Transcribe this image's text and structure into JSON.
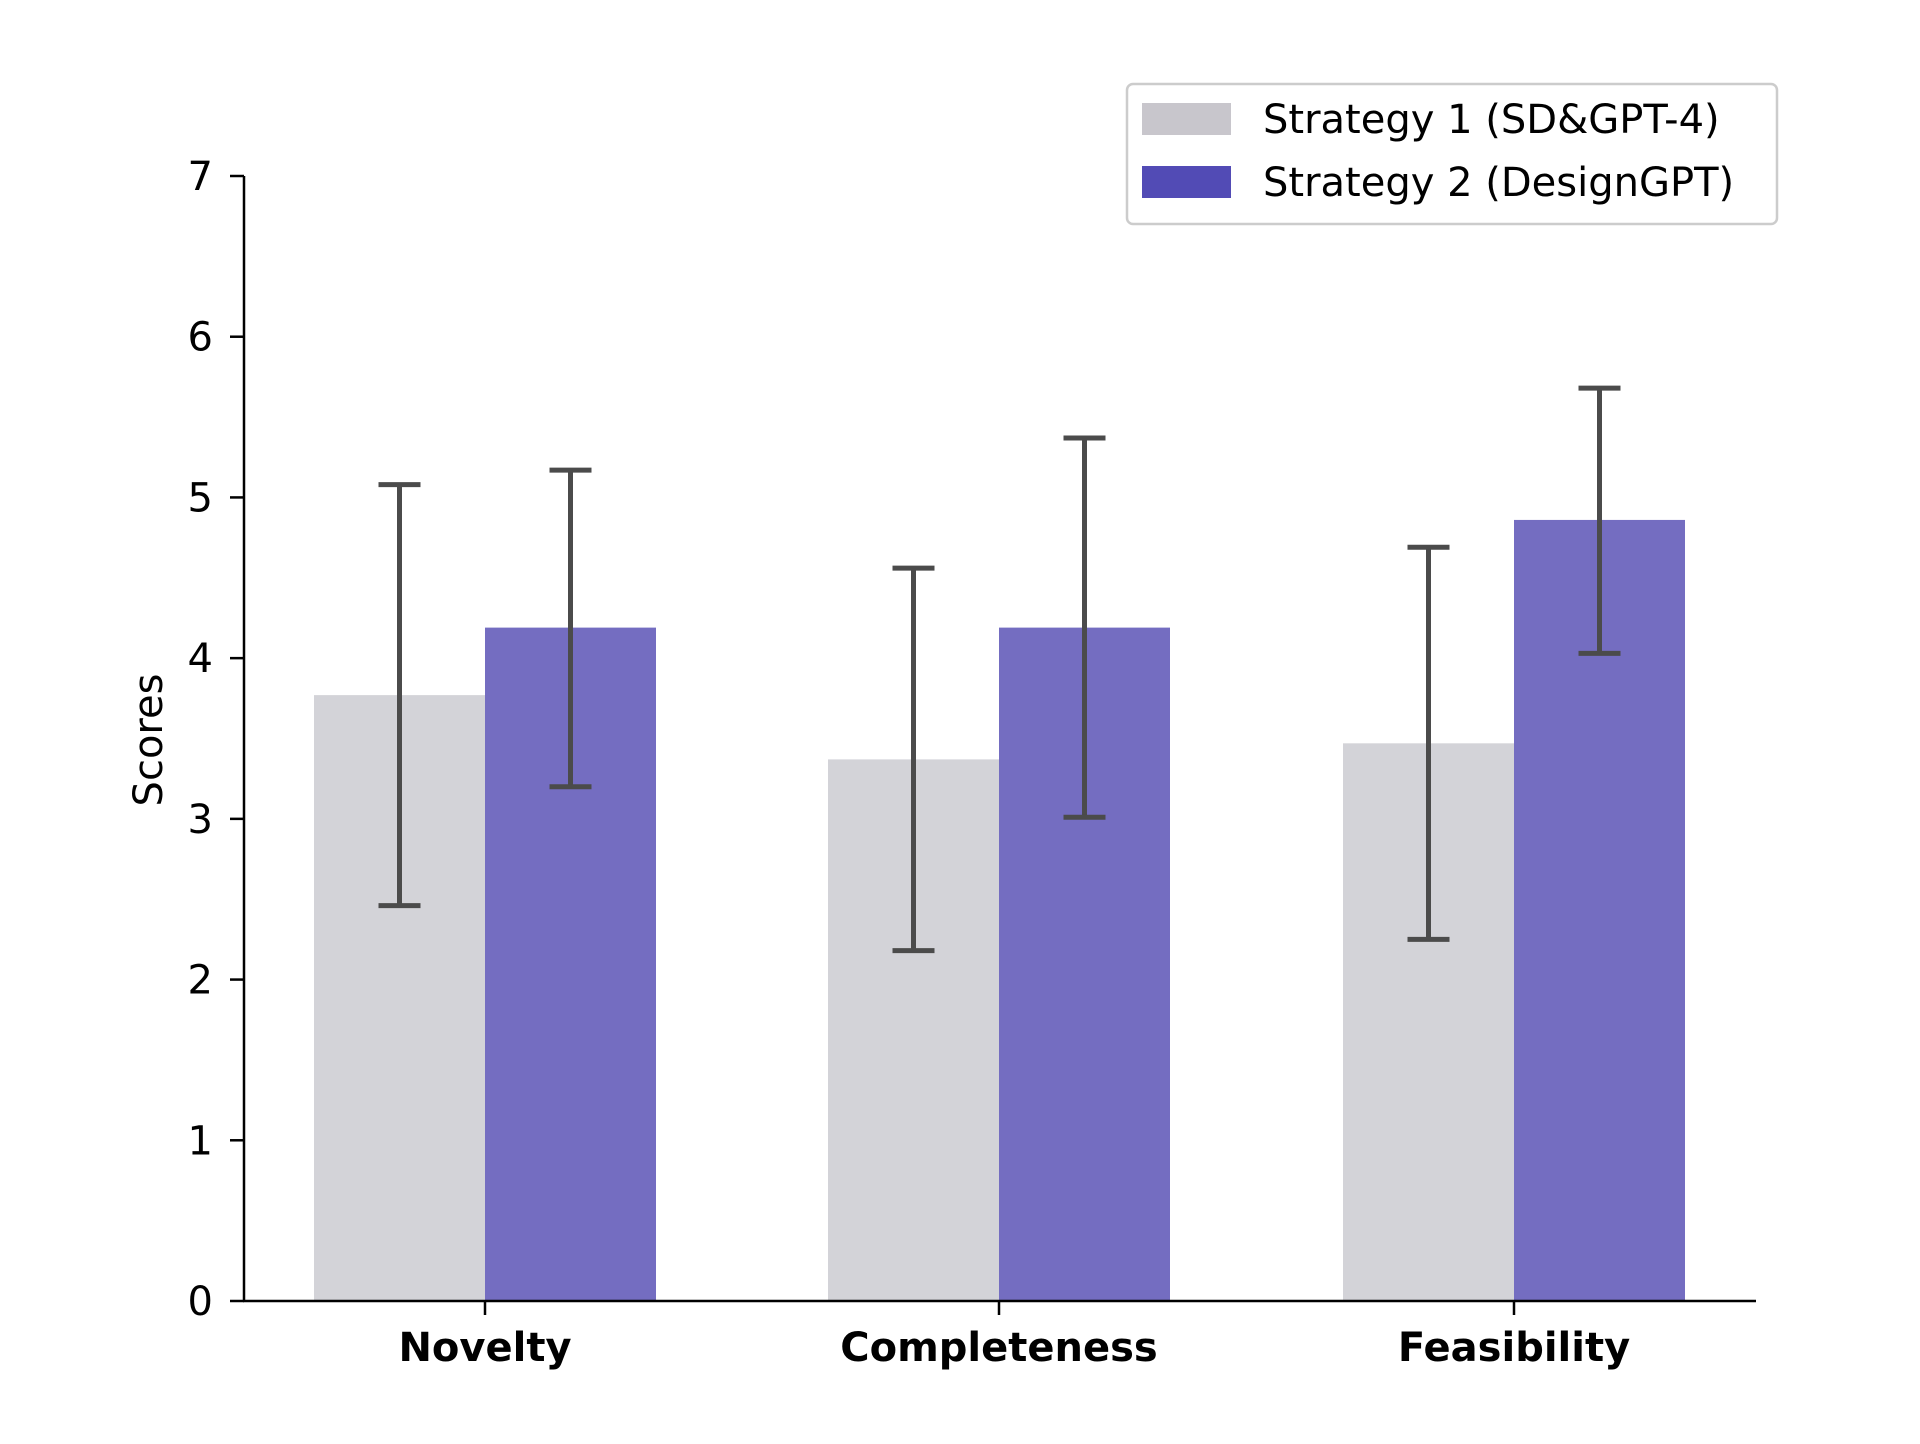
{
  "chart_data": {
    "type": "bar",
    "title": "",
    "xlabel": "",
    "ylabel": "Scores",
    "categories": [
      "Novelty",
      "Completeness",
      "Feasibility"
    ],
    "yticks": [
      "0",
      "1",
      "2",
      "3",
      "4",
      "5",
      "6",
      "7"
    ],
    "ylim": [
      0,
      7
    ],
    "grid": false,
    "legend_position": "top-right",
    "series": [
      {
        "name": "Strategy 1 (SD&GPT-4)",
        "color": "#d3d3d8",
        "legend_color": "#c8c6cc",
        "values": [
          3.77,
          3.37,
          3.47
        ],
        "error_low": [
          2.46,
          2.18,
          2.25
        ],
        "error_high": [
          5.08,
          4.56,
          4.69
        ]
      },
      {
        "name": "Strategy 2 (DesignGPT)",
        "color": "#746dc1",
        "legend_color": "#524bb5",
        "values": [
          4.19,
          4.19,
          4.86
        ],
        "error_low": [
          3.2,
          3.01,
          4.03
        ],
        "error_high": [
          5.17,
          5.37,
          5.68
        ]
      }
    ],
    "error_color": "#4b4b4b"
  }
}
